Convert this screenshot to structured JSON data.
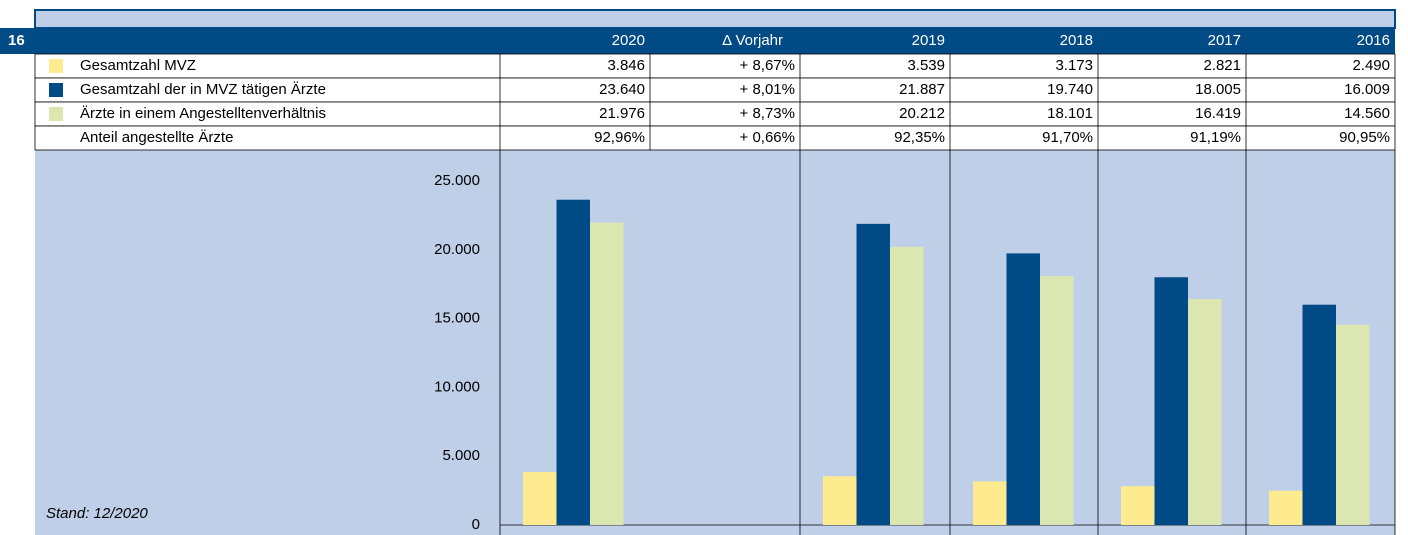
{
  "label": "16",
  "delta_header": "Δ Vorjahr",
  "chart_data": {
    "type": "bar",
    "categories": [
      "2020",
      "2019",
      "2018",
      "2017",
      "2016"
    ],
    "series": [
      {
        "name": "Gesamtzahl MVZ",
        "color": "#ffeb8f",
        "values": [
          3846,
          3539,
          3173,
          2821,
          2490
        ],
        "value_labels": [
          "3.846",
          "3.539",
          "3.173",
          "2.821",
          "2.490"
        ],
        "delta": "+ 8,67%"
      },
      {
        "name": "Gesamtzahl der in MVZ tätigen Ärzte",
        "color": "#004a86",
        "values": [
          23640,
          21887,
          19740,
          18005,
          16009
        ],
        "value_labels": [
          "23.640",
          "21.887",
          "19.740",
          "18.005",
          "16.009"
        ],
        "delta": "+ 8,01%"
      },
      {
        "name": "Ärzte in einem Angestelltenverhältnis",
        "color": "#dbe6b0",
        "values": [
          21976,
          20212,
          18101,
          16419,
          14560
        ],
        "value_labels": [
          "21.976",
          "20.212",
          "18.101",
          "16.419",
          "14.560"
        ],
        "delta": "+ 8,73%"
      }
    ],
    "ylim": [
      0,
      25000
    ],
    "yticks": [
      0,
      {
        "value": 5000,
        "label": "5.000"
      },
      {
        "value": 10000,
        "label": "10.000"
      },
      {
        "value": 15000,
        "label": "15.000"
      },
      {
        "value": 20000,
        "label": "20.000"
      },
      {
        "value": 25000,
        "label": "25.000"
      }
    ],
    "annotation": "Stand: 12/2020"
  },
  "share": {
    "name": "Anteil angestellte Ärzte",
    "value_labels": [
      "92,96%",
      "92,35%",
      "91,70%",
      "91,19%",
      "90,95%"
    ],
    "delta": "+ 0,66%"
  }
}
